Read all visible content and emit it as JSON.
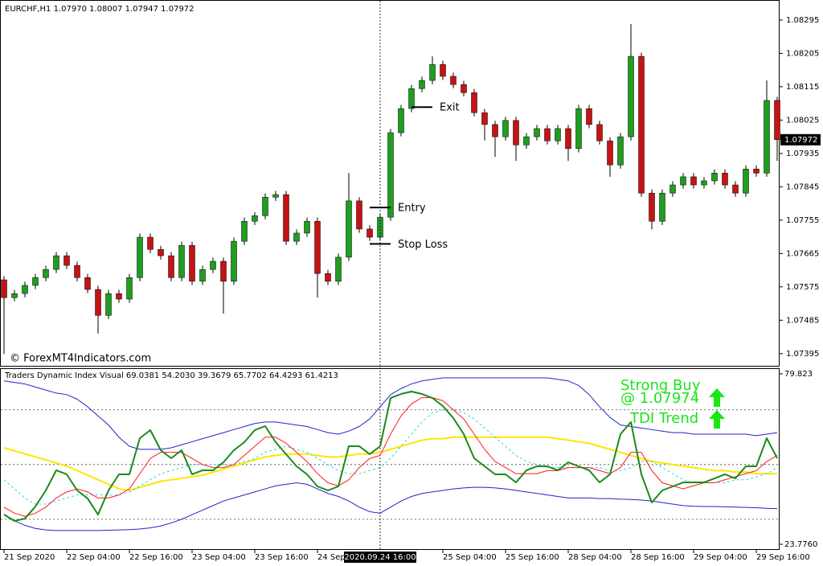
{
  "chart_data": [
    {
      "type": "candlestick",
      "title": "EURCHF,H1  1.07970 1.08007 1.07947 1.07972",
      "watermark": "© ForexMT4Indicators.com",
      "categories": [
        "21 Sep 2020",
        null,
        null,
        null,
        null,
        null,
        "22 Sep 04:00",
        null,
        null,
        null,
        null,
        null,
        "22 Sep 16:00",
        null,
        null,
        null,
        null,
        null,
        "23 Sep 04:00",
        null,
        null,
        null,
        null,
        null,
        "23 Sep 16:00",
        null,
        null,
        null,
        null,
        null,
        "24 Sep",
        null,
        null,
        null,
        null,
        null,
        "2020.09.24 16:00",
        null,
        null,
        null,
        null,
        null,
        "25 Sep 04:00",
        null,
        null,
        null,
        null,
        null,
        "25 Sep 16:00",
        null,
        null,
        null,
        null,
        null,
        "28 Sep 04:00",
        null,
        null,
        null,
        null,
        null,
        "28 Sep 16:00",
        null,
        null,
        null,
        null,
        null,
        "29 Sep 04:00",
        null,
        null,
        null,
        null,
        null,
        "29 Sep 16:00",
        null,
        null
      ],
      "crosshair": {
        "category_index": 36
      },
      "open": [
        1.07594,
        1.07546,
        1.07557,
        1.07579,
        1.076,
        1.07622,
        1.07659,
        1.07633,
        1.076,
        1.07568,
        1.07498,
        1.07557,
        1.07542,
        1.076,
        1.07709,
        1.07676,
        1.07659,
        1.076,
        1.07687,
        1.0759,
        1.07622,
        1.07644,
        1.0759,
        1.07698,
        1.07752,
        1.07767,
        1.07817,
        1.07824,
        1.07698,
        1.0772,
        1.07752,
        1.07611,
        1.0759,
        1.07655,
        1.07807,
        1.07731,
        1.07709,
        1.07763,
        1.07991,
        1.08056,
        1.0811,
        1.08132,
        1.08175,
        1.08143,
        1.08121,
        1.08099,
        1.08045,
        1.08013,
        1.0798,
        1.08024,
        1.07958,
        1.0798,
        1.08002,
        1.07969,
        1.08002,
        1.07948,
        1.08056,
        1.08013,
        1.07969,
        1.07904,
        1.0798,
        1.08197,
        1.07828,
        1.07752,
        1.07828,
        1.0785,
        1.07872,
        1.0785,
        1.07861,
        1.07882,
        1.0785,
        1.07828,
        1.07893,
        1.07882,
        1.08078
      ],
      "high": [
        1.07604,
        1.07567,
        1.07589,
        1.0761,
        1.07632,
        1.07669,
        1.07669,
        1.07643,
        1.0761,
        1.07578,
        1.07567,
        1.07567,
        1.0761,
        1.07719,
        1.07719,
        1.07686,
        1.07669,
        1.07697,
        1.07697,
        1.07632,
        1.07654,
        1.07654,
        1.07708,
        1.07762,
        1.07777,
        1.07827,
        1.07834,
        1.07834,
        1.0773,
        1.07762,
        1.07762,
        1.07621,
        1.07665,
        1.07882,
        1.07817,
        1.07741,
        1.07773,
        1.08001,
        1.08066,
        1.0812,
        1.08142,
        1.08197,
        1.08185,
        1.08153,
        1.08131,
        1.08109,
        1.08055,
        1.08023,
        1.08034,
        1.08034,
        1.0799,
        1.08012,
        1.08012,
        1.08012,
        1.08012,
        1.08066,
        1.08066,
        1.08023,
        1.07979,
        1.0799,
        1.08284,
        1.08207,
        1.07838,
        1.07838,
        1.0786,
        1.07882,
        1.07882,
        1.07871,
        1.07892,
        1.07892,
        1.0786,
        1.07903,
        1.07903,
        1.08132,
        1.08088
      ],
      "low": [
        1.07394,
        1.07536,
        1.07547,
        1.07569,
        1.0759,
        1.07612,
        1.07623,
        1.0759,
        1.07558,
        1.07449,
        1.07488,
        1.07532,
        1.07532,
        1.0759,
        1.07666,
        1.07649,
        1.0759,
        1.0759,
        1.0758,
        1.0758,
        1.07612,
        1.07503,
        1.0758,
        1.07688,
        1.07742,
        1.07757,
        1.07807,
        1.07688,
        1.07688,
        1.0771,
        1.07546,
        1.0758,
        1.0758,
        1.07645,
        1.07721,
        1.07699,
        1.07699,
        1.07753,
        1.07981,
        1.08046,
        1.081,
        1.08122,
        1.08133,
        1.08111,
        1.08089,
        1.08035,
        1.0797,
        1.07926,
        1.0797,
        1.07915,
        1.07948,
        1.0797,
        1.07959,
        1.07959,
        1.07915,
        1.07938,
        1.08003,
        1.07959,
        1.07872,
        1.07894,
        1.0797,
        1.07818,
        1.0773,
        1.07742,
        1.07818,
        1.0784,
        1.0784,
        1.0784,
        1.07851,
        1.0784,
        1.07818,
        1.07818,
        1.07872,
        1.07872,
        1.07915
      ],
      "close": [
        1.07546,
        1.07557,
        1.07579,
        1.076,
        1.07622,
        1.07659,
        1.07633,
        1.076,
        1.07568,
        1.07498,
        1.07557,
        1.07542,
        1.076,
        1.07709,
        1.07676,
        1.07659,
        1.076,
        1.07687,
        1.0759,
        1.07622,
        1.07644,
        1.0759,
        1.07698,
        1.07752,
        1.07767,
        1.07817,
        1.07824,
        1.07698,
        1.0772,
        1.07752,
        1.07611,
        1.0759,
        1.07655,
        1.07807,
        1.07731,
        1.07709,
        1.07763,
        1.07991,
        1.08056,
        1.0811,
        1.08132,
        1.08175,
        1.08143,
        1.08121,
        1.08099,
        1.08045,
        1.08013,
        1.0798,
        1.08024,
        1.07958,
        1.0798,
        1.08002,
        1.07969,
        1.08002,
        1.07948,
        1.08056,
        1.08013,
        1.07969,
        1.07904,
        1.0798,
        1.08197,
        1.07828,
        1.07752,
        1.07828,
        1.0785,
        1.07872,
        1.0785,
        1.07861,
        1.07882,
        1.0785,
        1.07828,
        1.07893,
        1.07882,
        1.08078,
        1.07972
      ],
      "up_color": "#1f9e1f",
      "down_color": "#c41414",
      "ylim": [
        1.07362,
        1.08349
      ],
      "yticks": [
        1.08295,
        1.08205,
        1.08115,
        1.08025,
        1.07935,
        1.07845,
        1.07755,
        1.07665,
        1.07575,
        1.07485,
        1.07395
      ],
      "annotations": [
        {
          "text": "Exit",
          "value": 1.0806,
          "category_index": 40
        },
        {
          "text": "Entry",
          "value": 1.07789,
          "category_index": 36
        },
        {
          "text": "Stop Loss",
          "value": 1.07691,
          "category_index": 36
        }
      ]
    },
    {
      "type": "line",
      "title": "Traders Dynamic Index Visual 69.0381 54.2030 39.3679 65.7702 64.4293 61.4213",
      "annotations": [
        "Strong Buy",
        "@ 1.07974",
        "TDI Trend"
      ],
      "ylim": [
        23.776,
        79.823
      ],
      "yticks": [
        79.823,
        {
          "value": 23.776,
          "label": "23.7760"
        }
      ],
      "levels": [
        68,
        50,
        32
      ],
      "series": [
        {
          "color": "#2323c8",
          "width": 1,
          "values": [
            77.5,
            77,
            76.5,
            75.5,
            74.5,
            73.5,
            73,
            71.5,
            69,
            66,
            63,
            59,
            56,
            55,
            55,
            55,
            55.5,
            56.5,
            57.5,
            58.5,
            59.5,
            60.5,
            61.5,
            62.5,
            63.5,
            64,
            64,
            63.5,
            63,
            62.5,
            61.5,
            60.5,
            60,
            61,
            62.5,
            65,
            69,
            73,
            75,
            76.5,
            77.5,
            78,
            78.5,
            78.5,
            78.5,
            78.5,
            78.5,
            78.5,
            78.5,
            78.5,
            78.5,
            78.5,
            78.5,
            78,
            77.5,
            76,
            73,
            69,
            65.5,
            63,
            62.5,
            62,
            61.5,
            61,
            60.5,
            60.5,
            60,
            60,
            60,
            60,
            60,
            60,
            59.5,
            60,
            60.5
          ]
        },
        {
          "color": "#2323c8",
          "width": 1,
          "values": [
            33.5,
            31.5,
            30,
            29,
            28.5,
            28.3,
            28.3,
            28.3,
            28.3,
            28.3,
            28.4,
            28.5,
            28.6,
            28.8,
            29.2,
            29.8,
            30.8,
            32,
            33.5,
            35,
            36.5,
            38,
            39,
            40,
            41,
            42,
            43,
            43.5,
            44,
            43.5,
            42,
            40.5,
            39.5,
            38,
            36,
            34.5,
            34,
            36,
            38,
            39.5,
            40.5,
            41,
            41.5,
            42,
            42.3,
            42.5,
            42.5,
            42.3,
            42,
            41.5,
            41,
            40.5,
            40,
            39.5,
            39,
            39,
            39,
            38.8,
            38.8,
            38.6,
            38.5,
            38.3,
            38,
            37.5,
            37,
            36.5,
            36.3,
            36.2,
            36.2,
            36.1,
            36,
            35.9,
            35.8,
            35.6,
            35.5
          ]
        },
        {
          "color": "#ffe600",
          "width": 2,
          "values": [
            55.5,
            54.5,
            53.5,
            52.5,
            51.5,
            50.5,
            49.5,
            48,
            46.5,
            45,
            43.5,
            42,
            41.5,
            42.5,
            43.5,
            44.5,
            45,
            45.5,
            46,
            46.5,
            47.5,
            48.5,
            49.5,
            50.5,
            51.5,
            52.5,
            53,
            53.5,
            53.5,
            53.5,
            53,
            52.5,
            52.5,
            53,
            53.5,
            53.5,
            54,
            55,
            56,
            57,
            58,
            58.5,
            58.5,
            59,
            59,
            59,
            59,
            59,
            59,
            59,
            59,
            59,
            59,
            58.5,
            58,
            57.5,
            57,
            56,
            55,
            54,
            53,
            52,
            51,
            50.5,
            50,
            49.5,
            49,
            48.5,
            48,
            48,
            47.5,
            47.5,
            47,
            47,
            47
          ]
        },
        {
          "color": "#33d6e0",
          "width": 1,
          "dashed": true,
          "values": [
            45,
            42,
            39,
            37,
            37,
            38,
            39,
            40,
            40,
            40,
            40,
            40,
            41,
            43,
            45,
            47,
            48,
            49,
            50,
            50,
            50,
            50,
            50,
            51,
            52,
            54,
            55,
            56,
            55,
            54,
            52,
            50,
            48,
            47,
            47,
            48,
            49,
            52,
            56,
            60,
            64,
            67,
            68,
            68,
            67,
            65,
            62,
            59,
            56,
            53,
            51,
            50,
            49,
            49,
            49,
            49,
            49,
            49,
            48,
            48,
            49,
            51,
            51,
            49,
            47,
            45,
            44,
            44,
            44,
            44,
            45,
            45,
            46,
            47,
            49
          ]
        },
        {
          "color": "#ff1a1a",
          "width": 1,
          "values": [
            36,
            34,
            33,
            34,
            36,
            39,
            41,
            42,
            41,
            39,
            39,
            40,
            42,
            47,
            52,
            54,
            54,
            54,
            52,
            50,
            49,
            49,
            50,
            53,
            56,
            59,
            59,
            57,
            54,
            51,
            47,
            44,
            43,
            45,
            49,
            52,
            53,
            60,
            66,
            70,
            72,
            72,
            71,
            68,
            65,
            60,
            55,
            51,
            49,
            47,
            47,
            47,
            48,
            48,
            49,
            49,
            49,
            48,
            47,
            49,
            54,
            54,
            48,
            44,
            43,
            42,
            43,
            44,
            44,
            45,
            46,
            47,
            48,
            51,
            53
          ]
        },
        {
          "color": "#1a8a1a",
          "width": 2,
          "values": [
            33.55,
            31.44,
            32.24,
            36.2,
            41.49,
            48.1,
            46.78,
            41.49,
            38.85,
            33.55,
            41.49,
            46.78,
            46.78,
            58.67,
            61.32,
            54.71,
            52.06,
            54.71,
            46.78,
            48.1,
            48.1,
            50.74,
            54.71,
            57.35,
            61.32,
            62.64,
            57.35,
            53.39,
            49.42,
            46.78,
            42.81,
            41.49,
            42.81,
            56.03,
            56.03,
            53.39,
            56.03,
            71.89,
            73.21,
            74.01,
            73.21,
            71.89,
            69.25,
            65.28,
            60.0,
            52.06,
            49.42,
            46.78,
            46.78,
            44.13,
            48.1,
            49.42,
            49.42,
            48.1,
            50.74,
            49.42,
            48.1,
            44.13,
            46.78,
            60.0,
            63.96,
            46.78,
            37.52,
            41.49,
            42.81,
            44.13,
            44.13,
            44.13,
            45.45,
            46.78,
            45.45,
            49.42,
            49.42,
            58.67,
            52.06
          ]
        }
      ]
    }
  ]
}
